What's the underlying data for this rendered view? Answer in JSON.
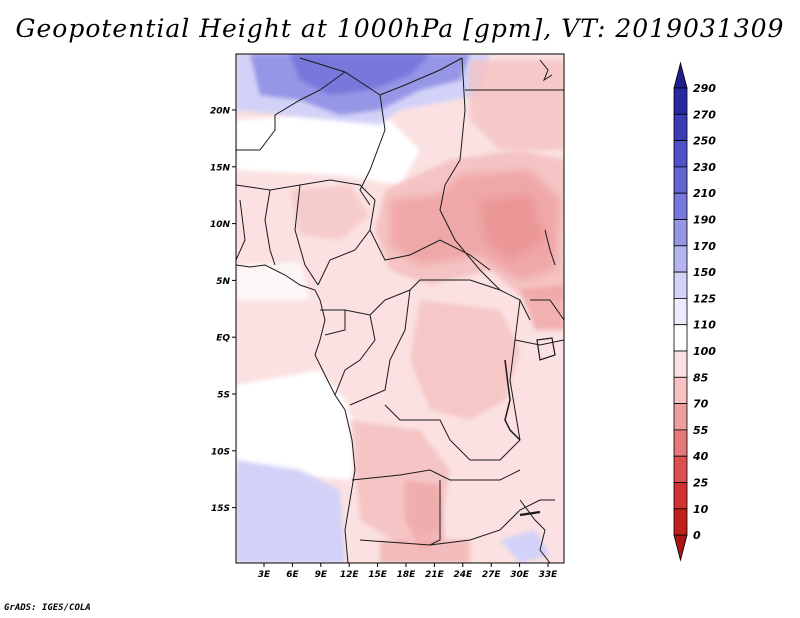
{
  "title": "Geopotential Height at 1000hPa [gpm], VT: 2019031309",
  "credit": "GrADS: IGES/COLA",
  "map": {
    "lat_labels": [
      "20N",
      "15N",
      "10N",
      "5N",
      "EQ",
      "5S",
      "10S",
      "15S"
    ],
    "lon_labels": [
      "3E",
      "6E",
      "9E",
      "12E",
      "15E",
      "18E",
      "21E",
      "24E",
      "27E",
      "30E",
      "33E"
    ],
    "colors": {
      "frame": "#000000",
      "border": "#1a1a1a"
    }
  },
  "colorbar": {
    "levels": [
      "290",
      "270",
      "250",
      "230",
      "210",
      "190",
      "170",
      "150",
      "125",
      "110",
      "100",
      "85",
      "70",
      "55",
      "40",
      "25",
      "10",
      "0"
    ],
    "colors": [
      "#1e1e8c",
      "#2828a0",
      "#3c3cb4",
      "#5050c8",
      "#6464d2",
      "#7878dc",
      "#9696e6",
      "#b4b4f0",
      "#d2d2f8",
      "#ebebfc",
      "#ffffff",
      "#fbe1e1",
      "#f5c3c3",
      "#ee9e9e",
      "#e57878",
      "#dc5050",
      "#d23232",
      "#c31e1e",
      "#aa1414"
    ]
  }
}
